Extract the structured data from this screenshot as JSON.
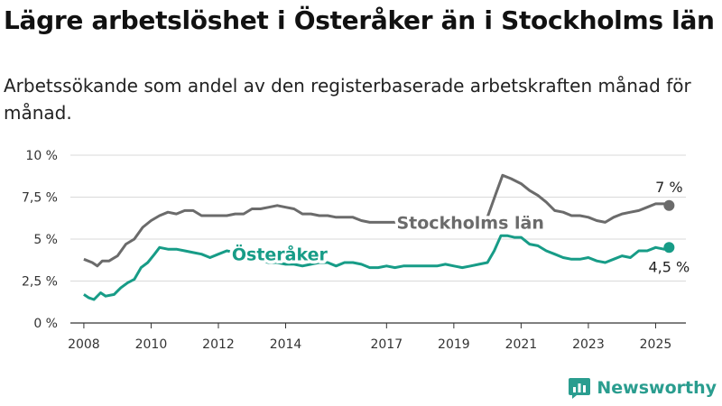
{
  "title": "Lägre arbetslöshet i Österåker än i Stockholms län",
  "subtitle": "Arbetssökande som andel av den registerbaserade arbetskraften månad för månad.",
  "brand": {
    "name": "Newsworthy",
    "color": "#2a9d8f"
  },
  "chart_data": {
    "type": "line",
    "ylim": [
      0,
      10
    ],
    "xlim": [
      2007.6,
      2025.9
    ],
    "yticks": [
      {
        "value": 0,
        "label": "0 %"
      },
      {
        "value": 2.5,
        "label": "2,5 %"
      },
      {
        "value": 5,
        "label": "5 %"
      },
      {
        "value": 7.5,
        "label": "7,5 %"
      },
      {
        "value": 10,
        "label": "10 %"
      }
    ],
    "xticks": [
      {
        "value": 2008,
        "label": "2008"
      },
      {
        "value": 2010,
        "label": "2010"
      },
      {
        "value": 2012,
        "label": "2012"
      },
      {
        "value": 2014,
        "label": "2014"
      },
      {
        "value": 2017,
        "label": "2017"
      },
      {
        "value": 2019,
        "label": "2019"
      },
      {
        "value": 2021,
        "label": "2021"
      },
      {
        "value": 2023,
        "label": "2023"
      },
      {
        "value": 2025,
        "label": "2025"
      }
    ],
    "grid": "horizontal",
    "series": [
      {
        "name": "Stockholms län",
        "color": "#6b6b6b",
        "end_label": "7 %",
        "points": [
          [
            2008.0,
            3.8
          ],
          [
            2008.25,
            3.6
          ],
          [
            2008.4,
            3.4
          ],
          [
            2008.55,
            3.7
          ],
          [
            2008.75,
            3.7
          ],
          [
            2009.0,
            4.0
          ],
          [
            2009.25,
            4.7
          ],
          [
            2009.5,
            5.0
          ],
          [
            2009.75,
            5.7
          ],
          [
            2010.0,
            6.1
          ],
          [
            2010.25,
            6.4
          ],
          [
            2010.5,
            6.6
          ],
          [
            2010.75,
            6.5
          ],
          [
            2011.0,
            6.7
          ],
          [
            2011.25,
            6.7
          ],
          [
            2011.5,
            6.4
          ],
          [
            2011.75,
            6.4
          ],
          [
            2012.0,
            6.4
          ],
          [
            2012.25,
            6.4
          ],
          [
            2012.5,
            6.5
          ],
          [
            2012.75,
            6.5
          ],
          [
            2013.0,
            6.8
          ],
          [
            2013.25,
            6.8
          ],
          [
            2013.5,
            6.9
          ],
          [
            2013.75,
            7.0
          ],
          [
            2014.0,
            6.9
          ],
          [
            2014.25,
            6.8
          ],
          [
            2014.5,
            6.5
          ],
          [
            2014.75,
            6.5
          ],
          [
            2015.0,
            6.4
          ],
          [
            2015.25,
            6.4
          ],
          [
            2015.5,
            6.3
          ],
          [
            2015.75,
            6.3
          ],
          [
            2016.0,
            6.3
          ],
          [
            2016.25,
            6.1
          ],
          [
            2016.5,
            6.0
          ],
          [
            2016.75,
            6.0
          ],
          [
            2017.0,
            6.0
          ],
          [
            2017.25,
            6.0
          ],
          [
            2017.5,
            6.1
          ],
          [
            2018.0,
            6.0
          ],
          [
            2018.5,
            5.9
          ],
          [
            2019.0,
            5.9
          ],
          [
            2019.5,
            6.1
          ],
          [
            2020.0,
            6.3
          ],
          [
            2020.25,
            7.7
          ],
          [
            2020.45,
            8.8
          ],
          [
            2020.7,
            8.6
          ],
          [
            2021.0,
            8.3
          ],
          [
            2021.25,
            7.9
          ],
          [
            2021.5,
            7.6
          ],
          [
            2021.75,
            7.2
          ],
          [
            2022.0,
            6.7
          ],
          [
            2022.25,
            6.6
          ],
          [
            2022.5,
            6.4
          ],
          [
            2022.75,
            6.4
          ],
          [
            2023.0,
            6.3
          ],
          [
            2023.25,
            6.1
          ],
          [
            2023.5,
            6.0
          ],
          [
            2023.75,
            6.3
          ],
          [
            2024.0,
            6.5
          ],
          [
            2024.25,
            6.6
          ],
          [
            2024.5,
            6.7
          ],
          [
            2024.75,
            6.9
          ],
          [
            2025.0,
            7.1
          ],
          [
            2025.25,
            7.1
          ],
          [
            2025.4,
            7.0
          ]
        ]
      },
      {
        "name": "Österåker",
        "color": "#179c87",
        "end_label": "4,5 %",
        "points": [
          [
            2008.0,
            1.7
          ],
          [
            2008.15,
            1.5
          ],
          [
            2008.3,
            1.4
          ],
          [
            2008.5,
            1.8
          ],
          [
            2008.65,
            1.6
          ],
          [
            2008.9,
            1.7
          ],
          [
            2009.1,
            2.1
          ],
          [
            2009.3,
            2.4
          ],
          [
            2009.5,
            2.6
          ],
          [
            2009.7,
            3.3
          ],
          [
            2009.9,
            3.6
          ],
          [
            2010.1,
            4.1
          ],
          [
            2010.25,
            4.5
          ],
          [
            2010.5,
            4.4
          ],
          [
            2010.75,
            4.4
          ],
          [
            2011.0,
            4.3
          ],
          [
            2011.25,
            4.2
          ],
          [
            2011.5,
            4.1
          ],
          [
            2011.75,
            3.9
          ],
          [
            2012.0,
            4.1
          ],
          [
            2012.25,
            4.3
          ],
          [
            2012.5,
            4.2
          ],
          [
            2012.75,
            4.0
          ],
          [
            2013.0,
            3.9
          ],
          [
            2013.25,
            3.7
          ],
          [
            2013.5,
            3.6
          ],
          [
            2013.75,
            3.6
          ],
          [
            2014.0,
            3.5
          ],
          [
            2014.25,
            3.5
          ],
          [
            2014.5,
            3.4
          ],
          [
            2014.75,
            3.5
          ],
          [
            2015.0,
            3.6
          ],
          [
            2015.25,
            3.6
          ],
          [
            2015.5,
            3.4
          ],
          [
            2015.75,
            3.6
          ],
          [
            2016.0,
            3.6
          ],
          [
            2016.25,
            3.5
          ],
          [
            2016.5,
            3.3
          ],
          [
            2016.75,
            3.3
          ],
          [
            2017.0,
            3.4
          ],
          [
            2017.25,
            3.3
          ],
          [
            2017.5,
            3.4
          ],
          [
            2017.75,
            3.4
          ],
          [
            2018.0,
            3.4
          ],
          [
            2018.25,
            3.4
          ],
          [
            2018.5,
            3.4
          ],
          [
            2018.75,
            3.5
          ],
          [
            2019.0,
            3.4
          ],
          [
            2019.25,
            3.3
          ],
          [
            2019.5,
            3.4
          ],
          [
            2019.75,
            3.5
          ],
          [
            2020.0,
            3.6
          ],
          [
            2020.2,
            4.3
          ],
          [
            2020.4,
            5.2
          ],
          [
            2020.6,
            5.2
          ],
          [
            2020.8,
            5.1
          ],
          [
            2021.0,
            5.1
          ],
          [
            2021.25,
            4.7
          ],
          [
            2021.5,
            4.6
          ],
          [
            2021.75,
            4.3
          ],
          [
            2022.0,
            4.1
          ],
          [
            2022.25,
            3.9
          ],
          [
            2022.5,
            3.8
          ],
          [
            2022.75,
            3.8
          ],
          [
            2023.0,
            3.9
          ],
          [
            2023.25,
            3.7
          ],
          [
            2023.5,
            3.6
          ],
          [
            2023.75,
            3.8
          ],
          [
            2024.0,
            4.0
          ],
          [
            2024.25,
            3.9
          ],
          [
            2024.5,
            4.3
          ],
          [
            2024.75,
            4.3
          ],
          [
            2025.0,
            4.5
          ],
          [
            2025.25,
            4.4
          ],
          [
            2025.4,
            4.5
          ]
        ]
      }
    ]
  }
}
